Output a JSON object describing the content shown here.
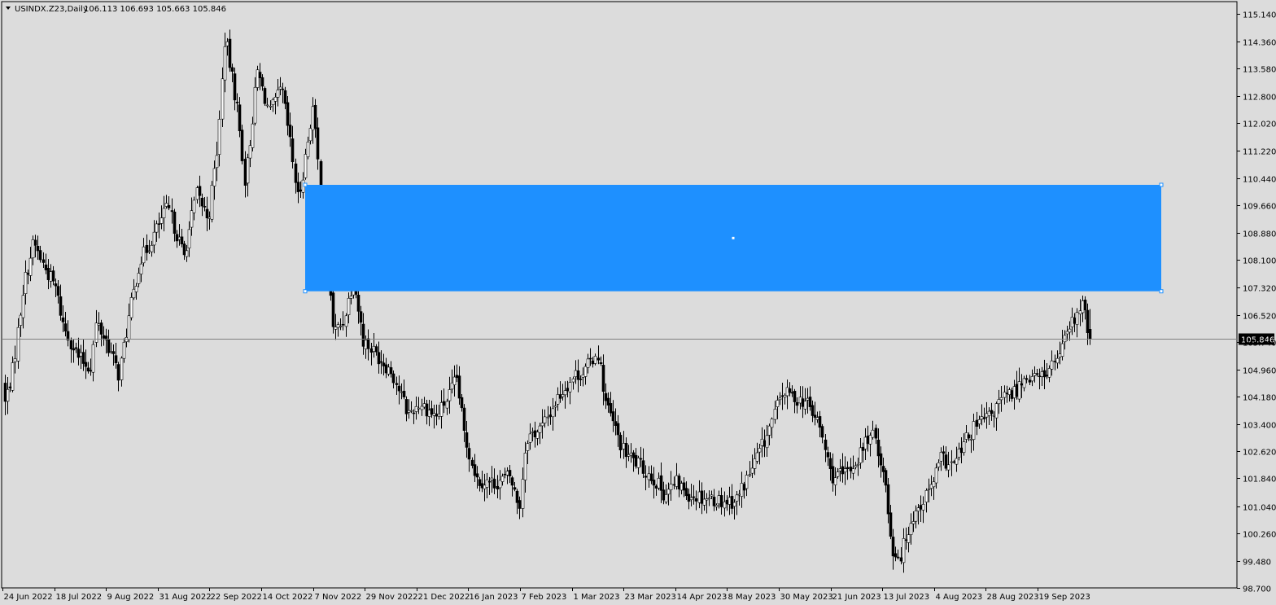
{
  "header": {
    "symbol_timeframe": "USINDX.Z23,Daily",
    "ohlc": "106.113 106.693 105.663 105.846"
  },
  "current_price_label": "105.846",
  "chart_data": {
    "type": "candlestick",
    "symbol": "USINDX.Z23",
    "timeframe": "Daily",
    "last_bar": {
      "open": 106.113,
      "high": 106.693,
      "low": 105.663,
      "close": 105.846
    },
    "current_price": 105.846,
    "ylim": [
      98.7,
      115.5
    ],
    "y_ticks": [
      "115.140",
      "114.360",
      "113.580",
      "112.800",
      "112.020",
      "111.220",
      "110.440",
      "109.660",
      "108.880",
      "108.100",
      "107.320",
      "106.520",
      "105.740",
      "104.960",
      "104.180",
      "103.400",
      "102.620",
      "101.840",
      "101.040",
      "100.260",
      "99.480",
      "98.700"
    ],
    "x_ticks": [
      "24 Jun 2022",
      "18 Jul 2022",
      "9 Aug 2022",
      "31 Aug 2022",
      "22 Sep 2022",
      "14 Oct 2022",
      "7 Nov 2022",
      "29 Nov 2022",
      "21 Dec 2022",
      "16 Jan 2023",
      "7 Feb 2023",
      "1 Mar 2023",
      "23 Mar 2023",
      "14 Apr 2023",
      "8 May 2023",
      "30 May 2023",
      "21 Jun 2023",
      "13 Jul 2023",
      "4 Aug 2023",
      "28 Aug 2023",
      "19 Sep 2023"
    ],
    "zone": {
      "top": 110.25,
      "bottom": 107.2,
      "start_tick": "14 Oct 2022",
      "color": "#1e90ff"
    },
    "close_path": [
      [
        0,
        104.0
      ],
      [
        10,
        105.0
      ],
      [
        22,
        107.3
      ],
      [
        35,
        108.6
      ],
      [
        48,
        107.9
      ],
      [
        62,
        107.3
      ],
      [
        72,
        106.2
      ],
      [
        90,
        105.3
      ],
      [
        105,
        105.0
      ],
      [
        112,
        106.3
      ],
      [
        126,
        105.7
      ],
      [
        140,
        104.8
      ],
      [
        150,
        106.2
      ],
      [
        165,
        108.0
      ],
      [
        180,
        108.7
      ],
      [
        200,
        109.6
      ],
      [
        220,
        108.2
      ],
      [
        235,
        110.0
      ],
      [
        250,
        109.3
      ],
      [
        262,
        111.5
      ],
      [
        270,
        114.5
      ],
      [
        285,
        112.5
      ],
      [
        295,
        110.3
      ],
      [
        310,
        113.5
      ],
      [
        325,
        112.3
      ],
      [
        340,
        113.0
      ],
      [
        350,
        111.5
      ],
      [
        360,
        109.8
      ],
      [
        370,
        111.2
      ],
      [
        378,
        112.5
      ],
      [
        386,
        110.5
      ],
      [
        398,
        107.5
      ],
      [
        404,
        106.0
      ],
      [
        415,
        106.3
      ],
      [
        428,
        107.6
      ],
      [
        440,
        105.8
      ],
      [
        460,
        105.3
      ],
      [
        475,
        104.9
      ],
      [
        495,
        103.7
      ],
      [
        510,
        104.0
      ],
      [
        530,
        103.6
      ],
      [
        545,
        104.2
      ],
      [
        555,
        104.7
      ],
      [
        565,
        103.0
      ],
      [
        580,
        101.8
      ],
      [
        600,
        101.7
      ],
      [
        620,
        101.9
      ],
      [
        632,
        101.0
      ],
      [
        640,
        103.0
      ],
      [
        660,
        103.3
      ],
      [
        680,
        104.2
      ],
      [
        700,
        104.8
      ],
      [
        712,
        104.9
      ],
      [
        728,
        105.5
      ],
      [
        738,
        104.0
      ],
      [
        760,
        102.6
      ],
      [
        780,
        102.2
      ],
      [
        798,
        101.8
      ],
      [
        810,
        101.4
      ],
      [
        825,
        101.7
      ],
      [
        840,
        101.4
      ],
      [
        860,
        101.3
      ],
      [
        880,
        101.2
      ],
      [
        898,
        101.2
      ],
      [
        915,
        102.0
      ],
      [
        935,
        103.0
      ],
      [
        955,
        104.3
      ],
      [
        968,
        104.2
      ],
      [
        985,
        104.0
      ],
      [
        1000,
        103.4
      ],
      [
        1015,
        101.9
      ],
      [
        1030,
        101.9
      ],
      [
        1045,
        102.3
      ],
      [
        1060,
        103.0
      ],
      [
        1070,
        103.0
      ],
      [
        1082,
        101.6
      ],
      [
        1090,
        99.8
      ],
      [
        1100,
        99.6
      ],
      [
        1112,
        100.6
      ],
      [
        1125,
        101.1
      ],
      [
        1138,
        101.6
      ],
      [
        1150,
        102.4
      ],
      [
        1165,
        102.2
      ],
      [
        1180,
        102.9
      ],
      [
        1195,
        103.4
      ],
      [
        1210,
        103.6
      ],
      [
        1225,
        104.1
      ],
      [
        1240,
        104.3
      ],
      [
        1255,
        104.8
      ],
      [
        1270,
        104.7
      ],
      [
        1285,
        105.0
      ],
      [
        1300,
        105.6
      ],
      [
        1312,
        106.3
      ],
      [
        1325,
        106.8
      ],
      [
        1330,
        106.1
      ],
      [
        1336,
        105.846
      ]
    ]
  }
}
